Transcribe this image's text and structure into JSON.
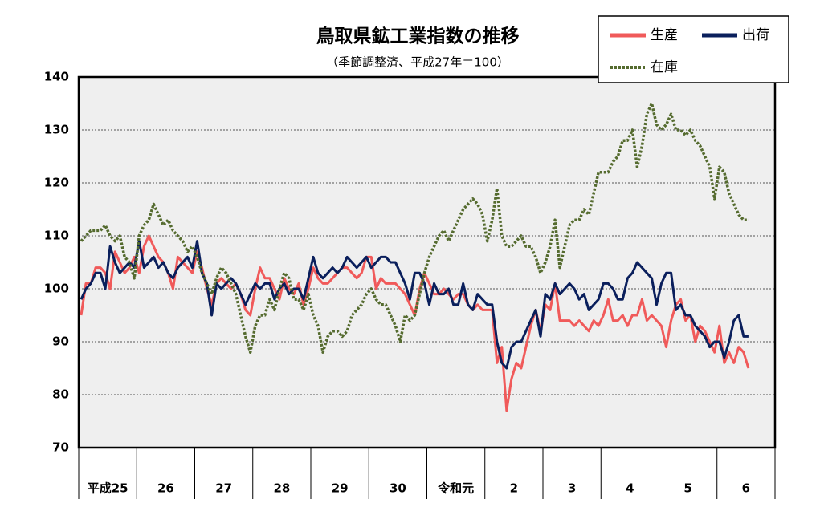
{
  "chart_data": {
    "type": "line",
    "title": "鳥取県鉱工業指数の推移",
    "subtitle": "（季節調整済、平成27年＝100）",
    "categories": [
      "平成25",
      null,
      null,
      null,
      null,
      null,
      null,
      null,
      null,
      null,
      null,
      null,
      "26",
      null,
      null,
      null,
      null,
      null,
      null,
      null,
      null,
      null,
      null,
      null,
      "27",
      null,
      null,
      null,
      null,
      null,
      null,
      null,
      null,
      null,
      null,
      null,
      "28",
      null,
      null,
      null,
      null,
      null,
      null,
      null,
      null,
      null,
      null,
      null,
      "29",
      null,
      null,
      null,
      null,
      null,
      null,
      null,
      null,
      null,
      null,
      null,
      "30",
      null,
      null,
      null,
      null,
      null,
      null,
      null,
      null,
      null,
      null,
      null,
      "令和元",
      null,
      null,
      null,
      null,
      null,
      null,
      null,
      null,
      null,
      null,
      null,
      "2",
      null,
      null,
      null,
      null,
      null,
      null,
      null,
      null,
      null,
      null,
      null,
      "3",
      null,
      null,
      null,
      null,
      null,
      null,
      null,
      null,
      null,
      null,
      null,
      "4",
      null,
      null,
      null,
      null,
      null,
      null,
      null,
      null,
      null,
      null,
      null,
      "5",
      null,
      null,
      null,
      null,
      null,
      null,
      null,
      null,
      null,
      null,
      null,
      "6",
      null,
      null,
      null,
      null,
      null,
      null
    ],
    "series": [
      {
        "name": "生産",
        "color": "#f05a5a",
        "style": "solid",
        "values": [
          95,
          101,
          101,
          104,
          104,
          103,
          100,
          107,
          105,
          103,
          104,
          106,
          103,
          108,
          110,
          108,
          106,
          105,
          103,
          100,
          106,
          105,
          104,
          103,
          107,
          104,
          100,
          97,
          101,
          102,
          101,
          100,
          101,
          99,
          96,
          95,
          100,
          104,
          102,
          102,
          100,
          98,
          102,
          100,
          99,
          101,
          97,
          100,
          104,
          102,
          101,
          101,
          102,
          103,
          104,
          104,
          103,
          102,
          103,
          106,
          106,
          100,
          102,
          101,
          101,
          101,
          100,
          99,
          97,
          95,
          100,
          103,
          101,
          99,
          99,
          100,
          99,
          98,
          99,
          99,
          97,
          96,
          97,
          96,
          96,
          96,
          86,
          89,
          77,
          83,
          86,
          85,
          89,
          93,
          96,
          92,
          97,
          96,
          101,
          94,
          94,
          94,
          93,
          94,
          93,
          92,
          94,
          93,
          95,
          98,
          94,
          94,
          95,
          93,
          95,
          95,
          98,
          94,
          95,
          94,
          93,
          89,
          94,
          97,
          98,
          94,
          95,
          90,
          93,
          92,
          90,
          88,
          93,
          86,
          88,
          86,
          89,
          88,
          85
        ]
      },
      {
        "name": "出荷",
        "color": "#0a1f5c",
        "style": "solid",
        "values": [
          98,
          100,
          101,
          103,
          103,
          100,
          108,
          105,
          103,
          104,
          105,
          104,
          109,
          104,
          105,
          106,
          104,
          105,
          103,
          102,
          104,
          105,
          106,
          104,
          109,
          103,
          101,
          95,
          101,
          100,
          101,
          102,
          101,
          99,
          97,
          99,
          101,
          100,
          101,
          101,
          98,
          100,
          101,
          99,
          100,
          100,
          98,
          102,
          106,
          103,
          102,
          103,
          104,
          103,
          104,
          106,
          105,
          104,
          105,
          106,
          104,
          105,
          106,
          106,
          105,
          105,
          103,
          101,
          98,
          103,
          103,
          101,
          97,
          101,
          99,
          99,
          100,
          97,
          97,
          101,
          97,
          96,
          99,
          98,
          97,
          97,
          90,
          86,
          85,
          89,
          90,
          90,
          92,
          94,
          96,
          91,
          99,
          98,
          101,
          99,
          100,
          101,
          100,
          98,
          99,
          96,
          97,
          98,
          101,
          101,
          100,
          98,
          98,
          102,
          103,
          105,
          104,
          103,
          102,
          97,
          101,
          103,
          103,
          96,
          97,
          95,
          95,
          93,
          92,
          91,
          89,
          90,
          90,
          87,
          90,
          94,
          95,
          91,
          91
        ]
      },
      {
        "name": "在庫",
        "color": "#556b2f",
        "style": "dotted",
        "values": [
          109,
          110,
          111,
          111,
          111,
          112,
          110,
          109,
          110,
          106,
          105,
          102,
          110,
          112,
          113,
          116,
          114,
          112,
          113,
          111,
          110,
          109,
          107,
          108,
          106,
          103,
          101,
          99,
          102,
          104,
          103,
          101,
          99,
          95,
          91,
          88,
          93,
          95,
          95,
          98,
          96,
          100,
          103,
          102,
          98,
          98,
          96,
          99,
          95,
          93,
          88,
          91,
          92,
          92,
          91,
          92,
          95,
          96,
          97,
          99,
          100,
          98,
          97,
          97,
          95,
          93,
          90,
          95,
          94,
          95,
          99,
          103,
          106,
          108,
          110,
          111,
          109,
          111,
          113,
          115,
          116,
          117,
          116,
          114,
          109,
          113,
          119,
          110,
          108,
          108,
          109,
          110,
          108,
          108,
          106,
          103,
          105,
          108,
          113,
          104,
          108,
          112,
          113,
          113,
          115,
          114,
          118,
          122,
          122,
          122,
          124,
          125,
          128,
          128,
          130,
          123,
          127,
          133,
          135,
          131,
          130,
          131,
          133,
          130,
          130,
          129,
          130,
          128,
          127,
          125,
          123,
          117,
          123,
          122,
          118,
          116,
          114,
          113,
          113
        ]
      }
    ],
    "ylim": [
      70,
      140
    ],
    "yticks": [
      70,
      80,
      90,
      100,
      110,
      120,
      130,
      140
    ],
    "grid": true,
    "legend": "top-right"
  }
}
